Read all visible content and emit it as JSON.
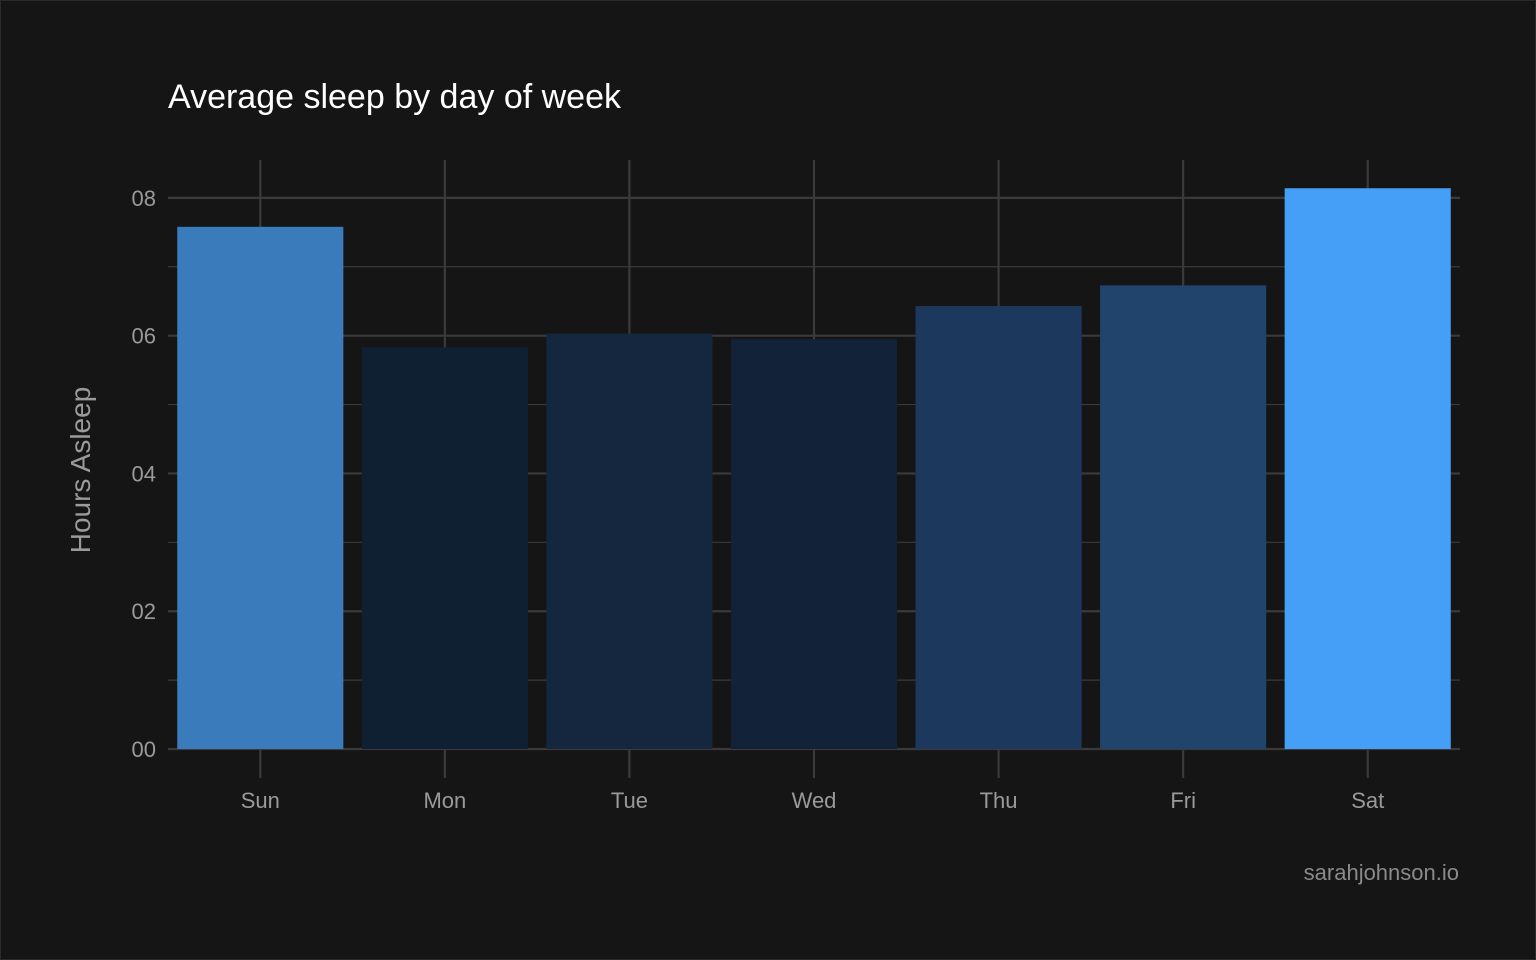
{
  "chart_data": {
    "type": "bar",
    "title": "Average sleep by day of week",
    "xlabel": "",
    "ylabel": "Hours Asleep",
    "caption": "sarahjohnson.io",
    "categories": [
      "Sun",
      "Mon",
      "Tue",
      "Wed",
      "Thu",
      "Fri",
      "Sat"
    ],
    "values": [
      7.58,
      5.83,
      6.03,
      5.95,
      6.43,
      6.73,
      8.14
    ],
    "bar_colors": [
      "#3a7bbb",
      "#102033",
      "#14273f",
      "#122238",
      "#1c385c",
      "#21446c",
      "#469ff7"
    ],
    "ylim": [
      0,
      8.55
    ],
    "yticks": [
      0,
      2,
      4,
      6,
      8
    ],
    "ytick_labels": [
      "00",
      "02",
      "04",
      "06",
      "08"
    ],
    "grid": true,
    "legend": "none",
    "colors": {
      "background": "#151515",
      "grid": "#3a3a3a",
      "title": "#ffffff",
      "axis_text": "#9a9a9a",
      "caption": "#8a8a8a"
    }
  }
}
